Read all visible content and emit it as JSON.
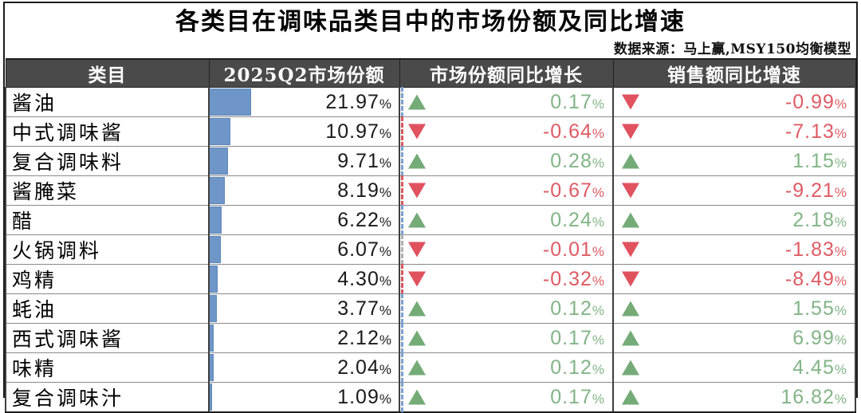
{
  "title": "各类目在调味品类目中的市场份额及同比增速",
  "source": "数据来源：马上赢,MSY150均衡模型",
  "header": {
    "category": "类目",
    "share": "2025Q2市场份额",
    "share_growth": "市场份额同比增长",
    "sales_growth": "销售额同比增速"
  },
  "colors": {
    "header_bg": "#4a4a4a",
    "bar_blue": "#6e96c8",
    "up_green": "#74ab77",
    "down_red": "#e0525e"
  },
  "chart_data": {
    "type": "table",
    "title": "各类目在调味品类目中的市场份额及同比增速",
    "source": "数据来源：马上赢,MSY150均衡模型",
    "columns": [
      "类目",
      "2025Q2市场份额",
      "市场份额同比增长",
      "销售额同比增速"
    ],
    "rows": [
      {
        "category": "酱油",
        "share": "21.97%",
        "share_pct": 21.97,
        "share_growth": "0.17%",
        "share_growth_dir": "up",
        "sales_growth": "-0.99%",
        "sales_growth_dir": "down",
        "axis": "pos"
      },
      {
        "category": "中式调味酱",
        "share": "10.97%",
        "share_pct": 10.97,
        "share_growth": "-0.64%",
        "share_growth_dir": "down",
        "sales_growth": "-7.13%",
        "sales_growth_dir": "down",
        "axis": "neg"
      },
      {
        "category": "复合调味料",
        "share": "9.71%",
        "share_pct": 9.71,
        "share_growth": "0.28%",
        "share_growth_dir": "up",
        "sales_growth": "1.15%",
        "sales_growth_dir": "up",
        "axis": "pos"
      },
      {
        "category": "酱腌菜",
        "share": "8.19%",
        "share_pct": 8.19,
        "share_growth": "-0.67%",
        "share_growth_dir": "down",
        "sales_growth": "-9.21%",
        "sales_growth_dir": "down",
        "axis": "neg"
      },
      {
        "category": "醋",
        "share": "6.22%",
        "share_pct": 6.22,
        "share_growth": "0.24%",
        "share_growth_dir": "up",
        "sales_growth": "2.18%",
        "sales_growth_dir": "up",
        "axis": "pos"
      },
      {
        "category": "火锅调料",
        "share": "6.07%",
        "share_pct": 6.07,
        "share_growth": "-0.01%",
        "share_growth_dir": "down",
        "sales_growth": "-1.83%",
        "sales_growth_dir": "down",
        "axis": "zero"
      },
      {
        "category": "鸡精",
        "share": "4.30%",
        "share_pct": 4.3,
        "share_growth": "-0.32%",
        "share_growth_dir": "down",
        "sales_growth": "-8.49%",
        "sales_growth_dir": "down",
        "axis": "neg"
      },
      {
        "category": "蚝油",
        "share": "3.77%",
        "share_pct": 3.77,
        "share_growth": "0.12%",
        "share_growth_dir": "up",
        "sales_growth": "1.55%",
        "sales_growth_dir": "up",
        "axis": "pos"
      },
      {
        "category": "西式调味酱",
        "share": "2.12%",
        "share_pct": 2.12,
        "share_growth": "0.17%",
        "share_growth_dir": "up",
        "sales_growth": "6.99%",
        "sales_growth_dir": "up",
        "axis": "pos"
      },
      {
        "category": "味精",
        "share": "2.04%",
        "share_pct": 2.04,
        "share_growth": "0.12%",
        "share_growth_dir": "up",
        "sales_growth": "4.45%",
        "sales_growth_dir": "up",
        "axis": "pos"
      },
      {
        "category": "复合调味汁",
        "share": "1.09%",
        "share_pct": 1.09,
        "share_growth": "0.17%",
        "share_growth_dir": "up",
        "sales_growth": "16.82%",
        "sales_growth_dir": "up",
        "axis": "pos"
      }
    ]
  }
}
